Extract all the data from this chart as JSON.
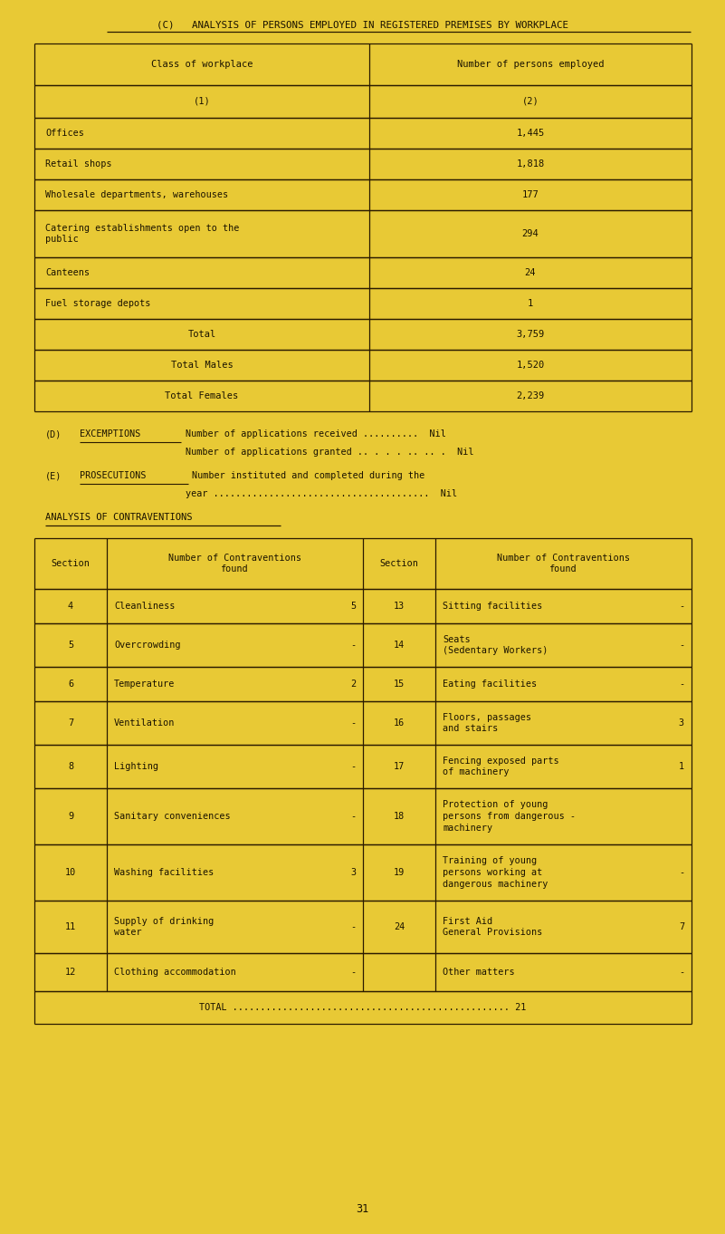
{
  "bg_color": "#E8C935",
  "text_color": "#1a1200",
  "title": "(C)   ANALYSIS OF PERSONS EMPLOYED IN REGISTERED PREMISES BY WORKPLACE",
  "t1_col1_header": "Class of workplace",
  "t1_col2_header": "Number of persons employed",
  "t1_subh1": "(1)",
  "t1_subh2": "(2)",
  "t1_rows": [
    [
      "Offices",
      "1,445"
    ],
    [
      "Retail shops",
      "1,818"
    ],
    [
      "Wholesale departments, warehouses",
      "177"
    ],
    [
      "Catering establishments open to the\npublic",
      "294"
    ],
    [
      "Canteens",
      "24"
    ],
    [
      "Fuel storage depots",
      "1"
    ]
  ],
  "t1_totals": [
    [
      "Total",
      "3,759"
    ],
    [
      "Total Males",
      "1,520"
    ],
    [
      "Total Females",
      "2,239"
    ]
  ],
  "d_label": "(D)",
  "d_word": "EXCEMPTIONS",
  "d_line1": "Number of applications received ..........  Nil",
  "d_line2": "Number of applications granted .. . . . .. .. .  Nil",
  "e_label": "(E)",
  "e_word": "PROSECUTIONS",
  "e_line1": "Number instituted and completed during the",
  "e_line2": "year .......................................  Nil",
  "contra_title": "ANALYSIS OF CONTRAVENTIONS",
  "t2_h1": "Section",
  "t2_h2": "Number of Contraventions\nfound",
  "t2_h3": "Section",
  "t2_h4": "Number of Contraventions\nfound",
  "t2_rows": [
    [
      "4",
      "Cleanliness",
      "5",
      "13",
      "Sitting facilities",
      "-"
    ],
    [
      "5",
      "Overcrowding",
      "-",
      "14",
      "Seats\n(Sedentary Workers)",
      "-"
    ],
    [
      "6",
      "Temperature",
      "2",
      "15",
      "Eating facilities",
      "-"
    ],
    [
      "7",
      "Ventilation",
      "-",
      "16",
      "Floors, passages\nand stairs",
      "3"
    ],
    [
      "8",
      "Lighting",
      "-",
      "17",
      "Fencing exposed parts\nof machinery",
      "1"
    ],
    [
      "9",
      "Sanitary conveniences",
      "-",
      "18",
      "Protection of young\npersons from dangerous -\nmachinery",
      ""
    ],
    [
      "10",
      "Washing facilities",
      "3",
      "19",
      "Training of young\npersons working at\ndangerous machinery",
      "-"
    ],
    [
      "11",
      "Supply of drinking\nwater",
      "-",
      "24",
      "First Aid\nGeneral Provisions",
      "7"
    ],
    [
      "12",
      "Clothing accommodation",
      "-",
      "",
      "Other matters",
      "-"
    ]
  ],
  "t2_row_heights": [
    38,
    48,
    38,
    48,
    48,
    62,
    62,
    58,
    42
  ],
  "total_line": "TOTAL .................................................. 21",
  "page_num": "31",
  "lc": "#2a1a00"
}
